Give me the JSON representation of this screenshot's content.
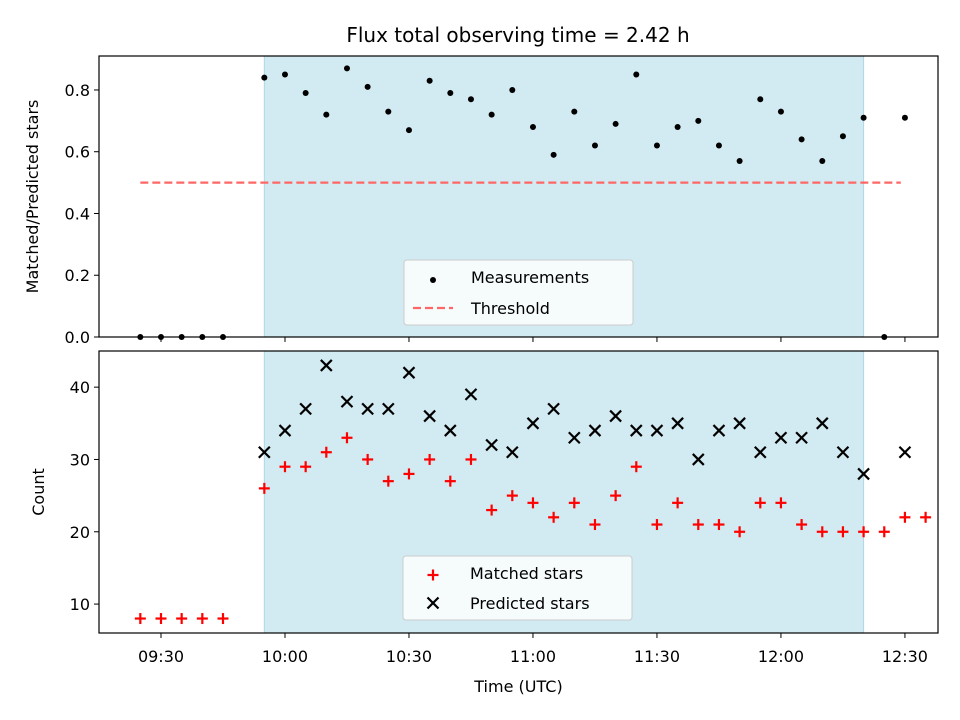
{
  "chart_data": {
    "type": "scatter",
    "title": "Flux total observing time = 2.42 h",
    "xlabel": "Time (UTC)",
    "x_ticks": [
      "09:30",
      "10:00",
      "10:30",
      "11:00",
      "11:30",
      "12:00",
      "12:30"
    ],
    "x_tick_minutes": [
      570,
      600,
      630,
      660,
      690,
      720,
      750
    ],
    "xlim_minutes": [
      555,
      758
    ],
    "shaded_span_minutes": [
      595,
      740
    ],
    "colors": {
      "shade": "#add8e6",
      "measurements": "#000000",
      "threshold": "#ff6666",
      "matched": "#ff0000",
      "predicted": "#000000"
    },
    "top_panel": {
      "ylabel": "Matched/Predicted stars",
      "ylim": [
        0,
        0.91
      ],
      "y_ticks": [
        0.0,
        0.2,
        0.4,
        0.6,
        0.8
      ],
      "y_tick_labels": [
        "0.0",
        "0.2",
        "0.4",
        "0.6",
        "0.8"
      ],
      "legend": [
        "Measurements",
        "Threshold"
      ],
      "legend_position": "lower-center",
      "threshold": {
        "value": 0.5,
        "x_start": 565,
        "x_end": 749
      },
      "measurements": {
        "x": [
          565,
          570,
          575,
          580,
          585,
          595,
          600,
          605,
          610,
          615,
          620,
          625,
          630,
          635,
          640,
          645,
          650,
          655,
          660,
          665,
          670,
          675,
          680,
          685,
          690,
          695,
          700,
          705,
          710,
          715,
          720,
          725,
          730,
          735,
          740,
          745,
          750
        ],
        "y": [
          0,
          0,
          0,
          0,
          0,
          0.84,
          0.85,
          0.79,
          0.72,
          0.87,
          0.81,
          0.73,
          0.67,
          0.83,
          0.79,
          0.77,
          0.72,
          0.8,
          0.68,
          0.59,
          0.73,
          0.62,
          0.69,
          0.85,
          0.62,
          0.68,
          0.7,
          0.62,
          0.57,
          0.77,
          0.73,
          0.64,
          0.57,
          0.65,
          0.71,
          0.0,
          0.71
        ]
      }
    },
    "bottom_panel": {
      "ylabel": "Count",
      "ylim": [
        6,
        45
      ],
      "y_ticks": [
        10,
        20,
        30,
        40
      ],
      "y_tick_labels": [
        "10",
        "20",
        "30",
        "40"
      ],
      "legend": [
        "Matched stars",
        "Predicted stars"
      ],
      "legend_position": "lower-center",
      "matched": {
        "x": [
          565,
          570,
          575,
          580,
          585,
          595,
          600,
          605,
          610,
          615,
          620,
          625,
          630,
          635,
          640,
          645,
          650,
          655,
          660,
          665,
          670,
          675,
          680,
          685,
          690,
          695,
          700,
          705,
          710,
          715,
          720,
          725,
          730,
          735,
          740,
          745,
          750,
          755
        ],
        "y": [
          8,
          8,
          8,
          8,
          8,
          26,
          29,
          29,
          31,
          33,
          30,
          27,
          28,
          30,
          27,
          30,
          23,
          25,
          24,
          22,
          24,
          21,
          25,
          29,
          21,
          24,
          21,
          21,
          20,
          24,
          24,
          21,
          20,
          20,
          20,
          20,
          22,
          22
        ]
      },
      "predicted": {
        "x": [
          595,
          600,
          605,
          610,
          615,
          620,
          625,
          630,
          635,
          640,
          645,
          650,
          655,
          660,
          665,
          670,
          675,
          680,
          685,
          690,
          695,
          700,
          705,
          710,
          715,
          720,
          725,
          730,
          735,
          740,
          750
        ],
        "y": [
          31,
          34,
          37,
          43,
          38,
          37,
          37,
          42,
          36,
          34,
          39,
          32,
          31,
          35,
          37,
          33,
          34,
          36,
          34,
          34,
          35,
          30,
          34,
          35,
          31,
          33,
          33,
          35,
          31,
          28,
          31
        ]
      }
    }
  }
}
